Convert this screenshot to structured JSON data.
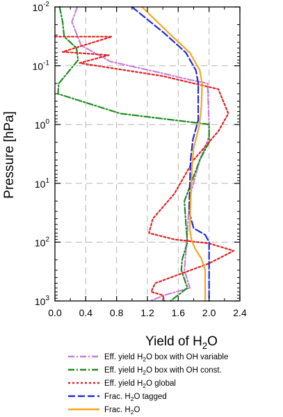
{
  "chart_data": {
    "type": "line",
    "xlabel": {
      "main": "Yield of H",
      "sub": "2",
      "tail": "O"
    },
    "ylabel": "Pressure [hPa]",
    "xlim": [
      0,
      2.4
    ],
    "ylim_hPa": [
      0.01,
      1000
    ],
    "y_scale": "log",
    "y_reversed": true,
    "grid": true,
    "legend_placement": "bottom",
    "x_ticks": [
      "0.0",
      "0.4",
      "0.8",
      "1.2",
      "1.6",
      "2.0",
      "2.4"
    ],
    "y_ticks": [
      {
        "base": "10",
        "exp": "-2",
        "value": 0.01
      },
      {
        "base": "10",
        "exp": "-1",
        "value": 0.1
      },
      {
        "base": "10",
        "exp": "0",
        "value": 1
      },
      {
        "base": "10",
        "exp": "1",
        "value": 10
      },
      {
        "base": "10",
        "exp": "2",
        "value": 100
      },
      {
        "base": "10",
        "exp": "3",
        "value": 1000
      }
    ],
    "series": [
      {
        "name": "Eff. yield H2O box with OH variable",
        "label": {
          "pre": "Eff. yield H",
          "sub": "2",
          "post": "O box with OH variable"
        },
        "color": "#c77fd8",
        "dash": "9,3,2,3",
        "points": [
          [
            0.29,
            0.01
          ],
          [
            0.22,
            0.018
          ],
          [
            0.34,
            0.045
          ],
          [
            0.72,
            0.085
          ],
          [
            1.35,
            0.13
          ],
          [
            1.72,
            0.17
          ],
          [
            1.98,
            0.2
          ],
          [
            2.0,
            1.0
          ],
          [
            2.0,
            1.6
          ],
          [
            1.88,
            4
          ],
          [
            1.76,
            15
          ],
          [
            1.73,
            40
          ],
          [
            1.71,
            100
          ],
          [
            1.68,
            300
          ],
          [
            1.75,
            600
          ],
          [
            1.42,
            800
          ],
          [
            1.24,
            1000
          ]
        ]
      },
      {
        "name": "Eff. yield H2O box with OH const.",
        "label": {
          "pre": "Eff. yield H",
          "sub": "2",
          "post": "O box with OH const."
        },
        "color": "#1e8a1e",
        "dash": "9,3,2,3",
        "points": [
          [
            0.06,
            0.01
          ],
          [
            0.1,
            0.018
          ],
          [
            0.12,
            0.032
          ],
          [
            0.28,
            0.05
          ],
          [
            0.3,
            0.08
          ],
          [
            0.05,
            0.2
          ],
          [
            0.04,
            0.3
          ],
          [
            0.85,
            0.65
          ],
          [
            1.97,
            0.98
          ],
          [
            2.0,
            1.0
          ],
          [
            2.0,
            2
          ],
          [
            1.88,
            4
          ],
          [
            1.68,
            20
          ],
          [
            1.7,
            50
          ],
          [
            1.72,
            100
          ],
          [
            1.65,
            200
          ],
          [
            1.64,
            300
          ],
          [
            1.72,
            600
          ],
          [
            1.5,
            1000
          ]
        ]
      },
      {
        "name": "Eff. yield H2O global",
        "label": {
          "pre": "Eff. yield H",
          "sub": "2",
          "post": "O global"
        },
        "color": "#e02020",
        "dash": "3,3",
        "points": [
          [
            0.0,
            0.032
          ],
          [
            0.74,
            0.032
          ],
          [
            0.1,
            0.058
          ],
          [
            0.7,
            0.066
          ],
          [
            0.32,
            0.09
          ],
          [
            1.4,
            0.15
          ],
          [
            2.12,
            0.25
          ],
          [
            2.25,
            0.65
          ],
          [
            2.12,
            1.3
          ],
          [
            1.8,
            4
          ],
          [
            1.55,
            15
          ],
          [
            1.27,
            40
          ],
          [
            1.22,
            70
          ],
          [
            1.55,
            90
          ],
          [
            2.0,
            105
          ],
          [
            2.32,
            140
          ],
          [
            2.0,
            230
          ],
          [
            1.3,
            500
          ],
          [
            1.25,
            700
          ],
          [
            1.4,
            800
          ],
          [
            1.42,
            1000
          ]
        ]
      },
      {
        "name": "Frac. H2O tagged",
        "label": {
          "pre": "Frac. H",
          "sub": "2",
          "post": "O tagged"
        },
        "color": "#1d2bd6",
        "dash": "10,4",
        "points": [
          [
            1.0,
            0.01
          ],
          [
            1.42,
            0.028
          ],
          [
            1.7,
            0.06
          ],
          [
            1.83,
            0.12
          ],
          [
            1.86,
            0.2
          ],
          [
            1.86,
            0.5
          ],
          [
            1.86,
            0.85
          ],
          [
            1.79,
            1.8
          ],
          [
            1.76,
            4
          ],
          [
            1.75,
            10
          ],
          [
            1.74,
            30
          ],
          [
            1.8,
            58
          ],
          [
            1.95,
            75
          ],
          [
            2.0,
            100
          ],
          [
            2.0,
            1000
          ]
        ]
      },
      {
        "name": "Frac. H2O",
        "label": {
          "pre": "Frac. H",
          "sub": "2",
          "post": "O"
        },
        "color": "#f5a623",
        "dash": "",
        "points": [
          [
            1.13,
            0.01
          ],
          [
            1.48,
            0.028
          ],
          [
            1.75,
            0.06
          ],
          [
            1.88,
            0.12
          ],
          [
            1.91,
            0.2
          ],
          [
            1.9,
            0.5
          ],
          [
            1.87,
            1.1
          ],
          [
            1.8,
            2.5
          ],
          [
            1.78,
            5
          ],
          [
            1.76,
            20
          ],
          [
            1.75,
            60
          ],
          [
            1.77,
            90
          ],
          [
            1.82,
            130
          ],
          [
            1.9,
            190
          ],
          [
            1.95,
            300
          ],
          [
            1.95,
            1000
          ]
        ]
      }
    ]
  }
}
